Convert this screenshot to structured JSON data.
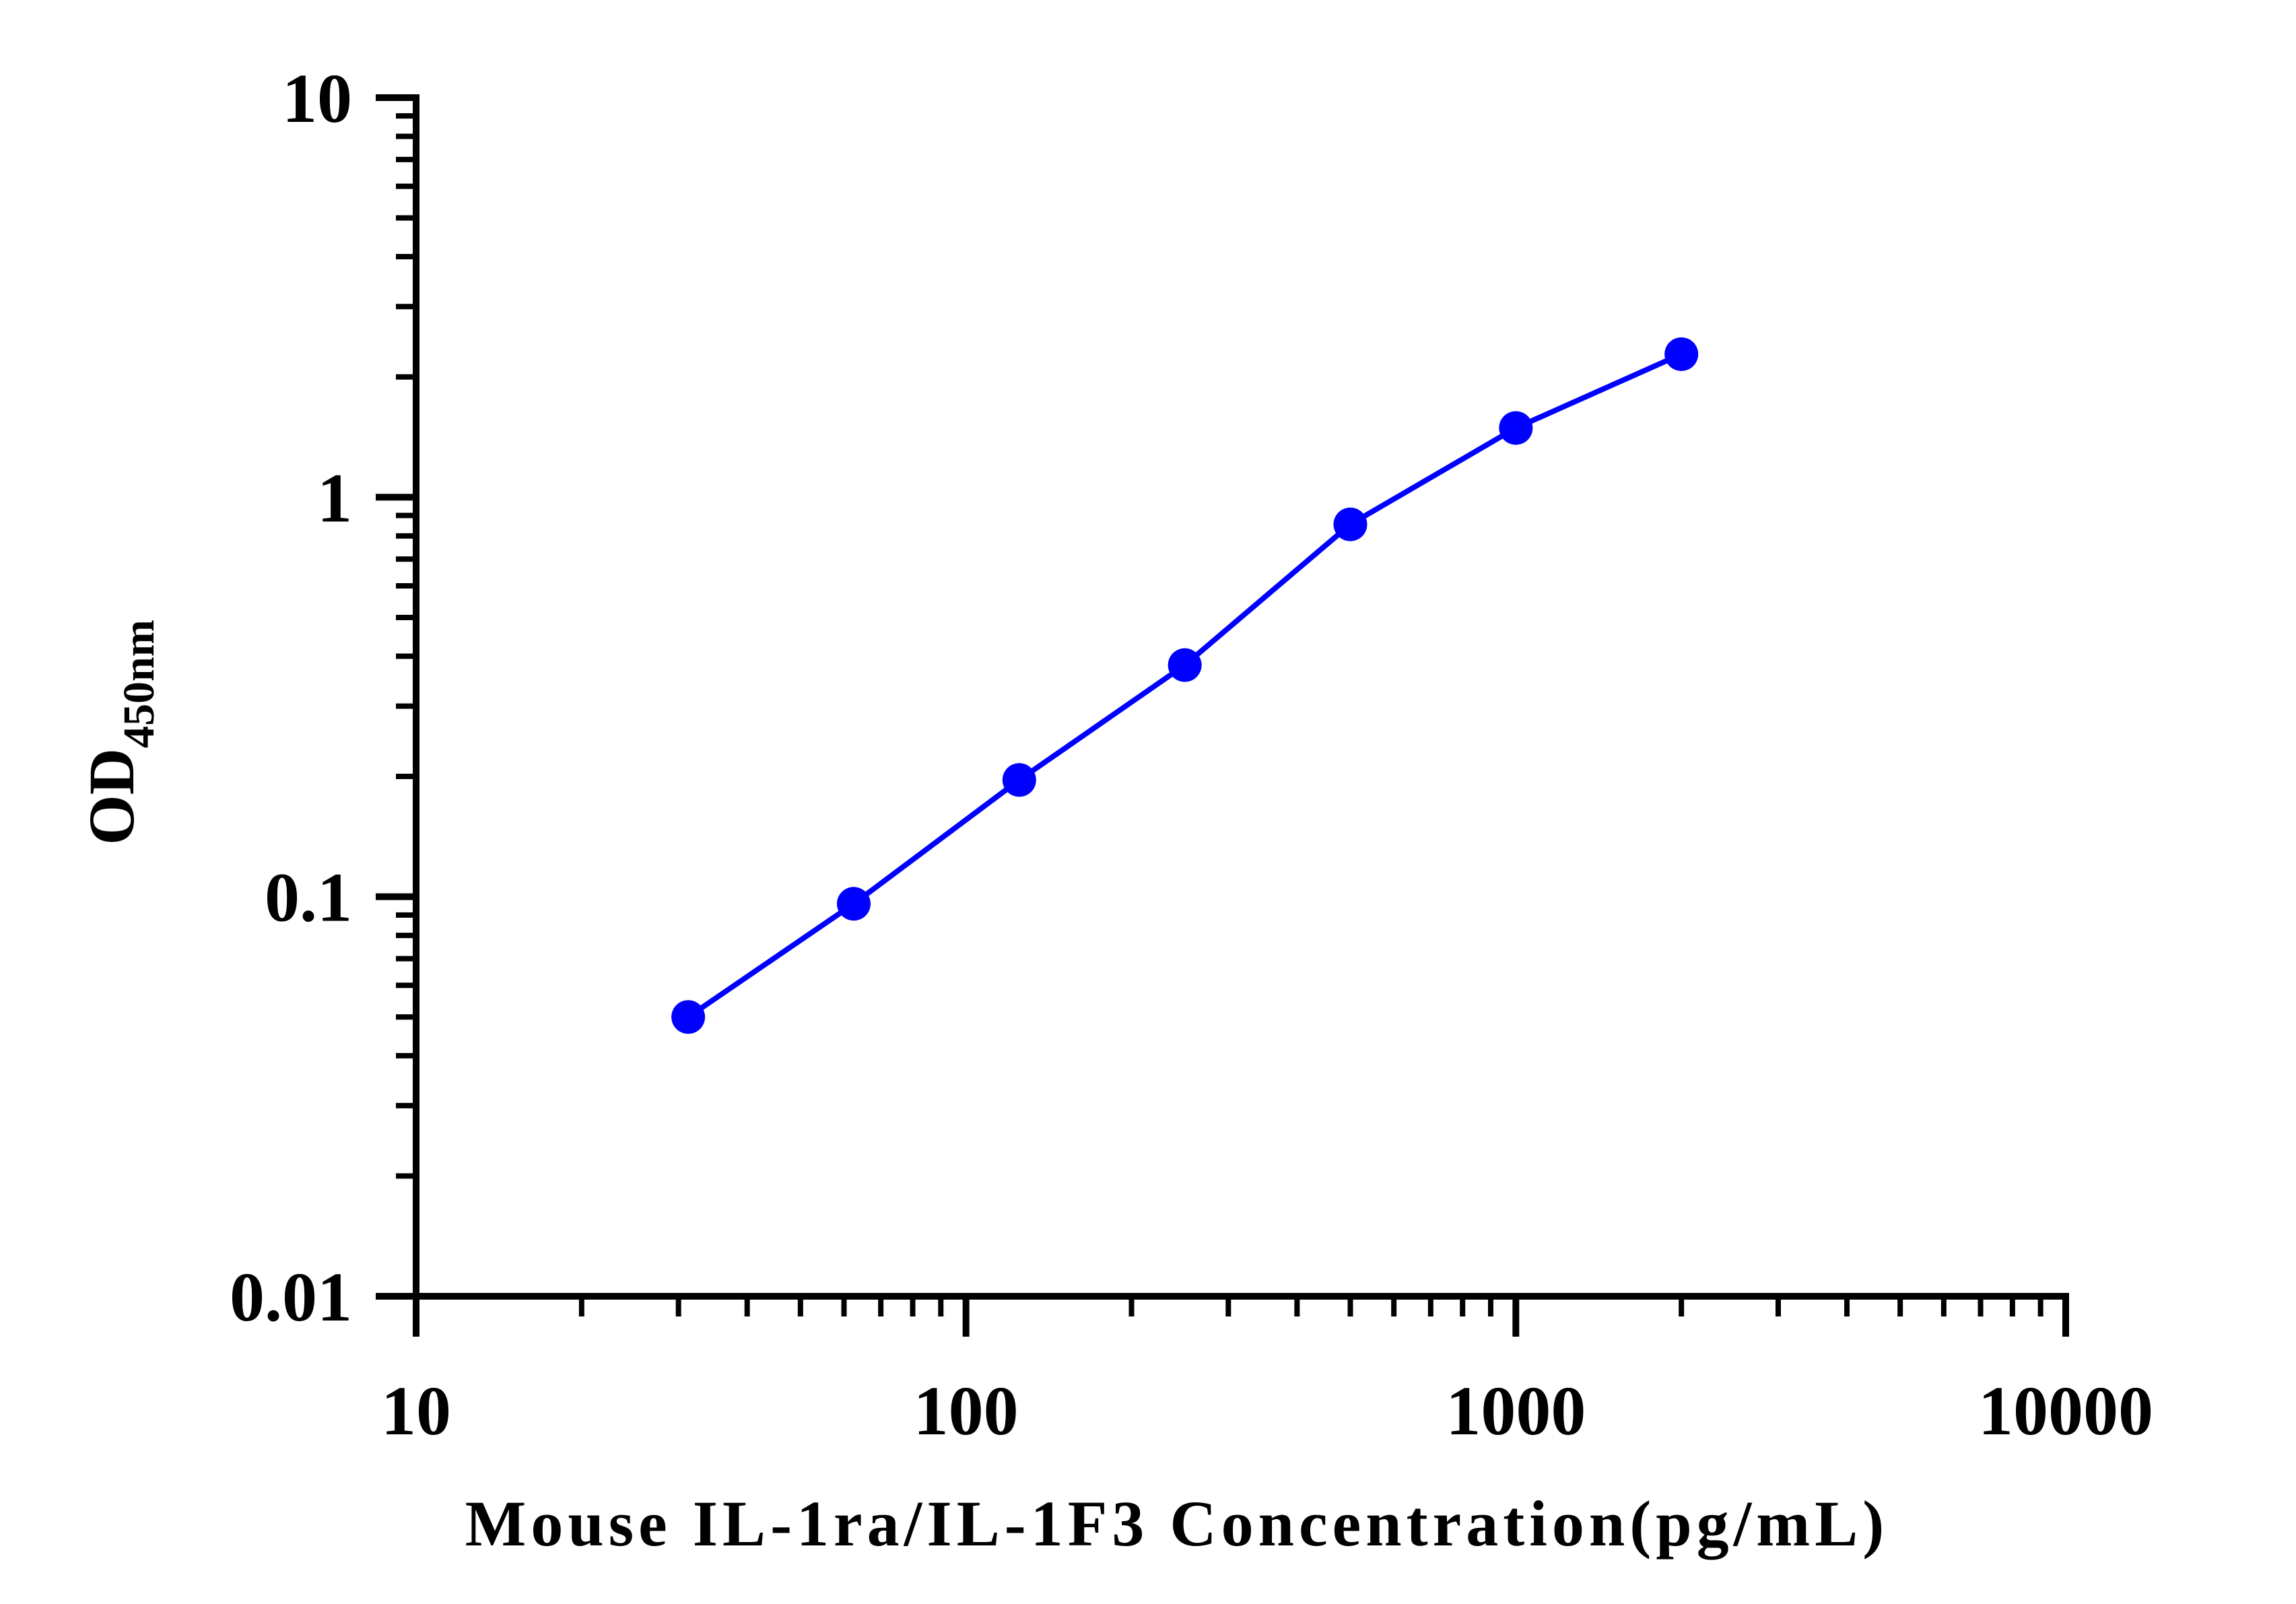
{
  "chart_data": {
    "type": "line",
    "title": "",
    "xlabel": "Mouse IL-1ra/IL-1F3 Concentration(pg/mL)",
    "ylabel_main": "OD",
    "ylabel_sub": "450nm",
    "x_scale": "log",
    "y_scale": "log",
    "xlim": [
      10,
      10000
    ],
    "ylim": [
      0.01,
      10
    ],
    "x_ticks": [
      10,
      100,
      1000,
      10000
    ],
    "x_tick_labels": [
      "10",
      "100",
      "1000",
      "10000"
    ],
    "y_ticks": [
      0.01,
      0.1,
      1,
      10
    ],
    "y_tick_labels": [
      "0.01",
      "0.1",
      "1",
      "10"
    ],
    "grid": false,
    "series": [
      {
        "color": "#0000ff",
        "marker": "circle",
        "x": [
          31.25,
          62.5,
          125,
          250,
          500,
          1000,
          2000
        ],
        "y": [
          0.05,
          0.096,
          0.196,
          0.38,
          0.855,
          1.49,
          2.28
        ]
      }
    ]
  }
}
